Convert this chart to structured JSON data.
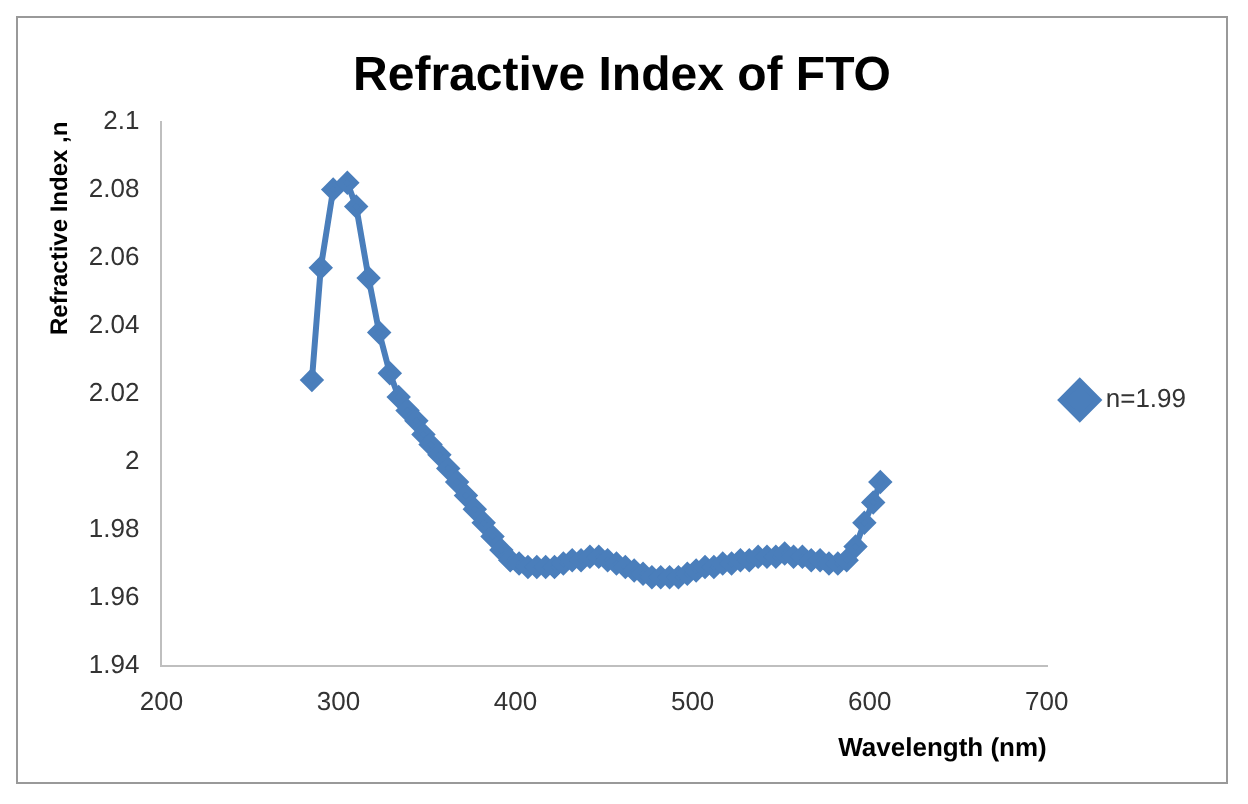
{
  "chart_data": {
    "type": "line",
    "title": "Refractive Index of FTO",
    "xlabel": "Wavelength (nm)",
    "ylabel": "Refractive Index ,n",
    "xlim": [
      200,
      700
    ],
    "xticks": [
      200,
      300,
      400,
      500,
      600,
      700
    ],
    "ylim": [
      1.94,
      2.1
    ],
    "yticks": [
      1.94,
      1.96,
      1.98,
      2,
      2.02,
      2.04,
      2.06,
      2.08,
      2.1
    ],
    "grid": false,
    "legend": "right",
    "marker": "diamond",
    "line_style": "solid",
    "series": [
      {
        "name": "n=1.99",
        "color": "#4a7ebb",
        "x": [
          285,
          290,
          297,
          305,
          310,
          317,
          323,
          329,
          334,
          339,
          344,
          348,
          352,
          357,
          362,
          367,
          372,
          377,
          382,
          387,
          392,
          397,
          402,
          407,
          412,
          417,
          422,
          427,
          432,
          437,
          442,
          447,
          452,
          457,
          462,
          467,
          472,
          477,
          482,
          487,
          492,
          497,
          502,
          507,
          512,
          517,
          522,
          527,
          532,
          537,
          542,
          547,
          552,
          557,
          562,
          567,
          572,
          577,
          582,
          587,
          592,
          597,
          602,
          606
        ],
        "values": [
          2.024,
          2.057,
          2.08,
          2.082,
          2.075,
          2.054,
          2.038,
          2.026,
          2.019,
          2.015,
          2.012,
          2.008,
          2.005,
          2.002,
          1.998,
          1.994,
          1.99,
          1.986,
          1.982,
          1.978,
          1.974,
          1.971,
          1.97,
          1.969,
          1.969,
          1.969,
          1.969,
          1.97,
          1.971,
          1.971,
          1.972,
          1.972,
          1.971,
          1.97,
          1.969,
          1.968,
          1.967,
          1.966,
          1.966,
          1.966,
          1.966,
          1.967,
          1.968,
          1.969,
          1.969,
          1.97,
          1.97,
          1.971,
          1.971,
          1.972,
          1.972,
          1.972,
          1.973,
          1.972,
          1.972,
          1.971,
          1.971,
          1.97,
          1.97,
          1.971,
          1.975,
          1.982,
          1.988,
          1.994
        ]
      }
    ]
  }
}
